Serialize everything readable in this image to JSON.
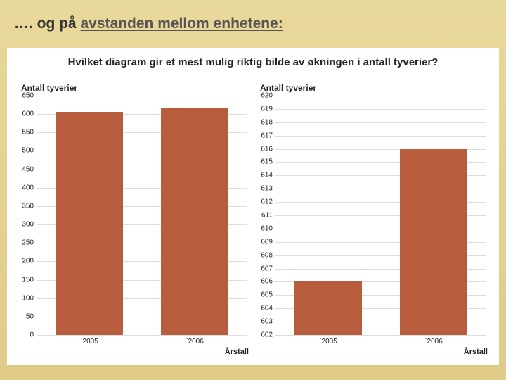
{
  "title_prefix": "…. og på ",
  "title_underlined": "avstanden mellom enhetene:",
  "question": "Hvilket diagram gir et mest mulig riktig bilde av økningen i antall tyverier?",
  "left_chart": {
    "type": "bar",
    "title": "Antall tyverier",
    "categories": [
      "`2005",
      "`2006"
    ],
    "values": [
      606,
      616
    ],
    "ylim": [
      0,
      650
    ],
    "ytick_step": 50,
    "bar_color": "#b85c3e",
    "grid_color": "#dddddd",
    "x_axis_title": "Årstall"
  },
  "right_chart": {
    "type": "bar",
    "title": "Antall tyverier",
    "categories": [
      "`2005",
      "`2006"
    ],
    "values": [
      606,
      616
    ],
    "ylim": [
      602,
      620
    ],
    "ytick_step": 1,
    "bar_color": "#b85c3e",
    "grid_color": "#dddddd",
    "x_axis_title": "Årstall"
  },
  "background_color": "#e8d89a",
  "panel_background": "#ffffff",
  "label_fontsize": 10,
  "title_fontsize": 21
}
